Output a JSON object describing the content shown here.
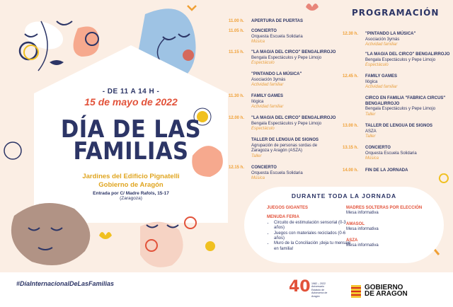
{
  "event": {
    "time_range": "- DE 11 A 14 H -",
    "date": "15 de mayo de 2022",
    "title_line1": "DÍA DE LAS",
    "title_line2": "FAMILIAS",
    "venue_line1": "Jardines del Edificio Pignatelli",
    "venue_line2": "Gobierno de Aragón",
    "entrance": "Entrada por C/ Madre Rafols, 15-17",
    "city": "(Zaragoza)"
  },
  "program": {
    "title": "PROGRAMACIÓN",
    "left": [
      {
        "time": "11.00 h.",
        "name": "APERTURA DE PUERTAS",
        "org": "",
        "cat": ""
      },
      {
        "time": "11.05 h.",
        "name": "CONCIERTO",
        "org": "Orquesta Escuela Solidaria",
        "cat": "Música"
      },
      {
        "time": "11.15 h.",
        "name": "\"LA MAGIA DEL CIRCO\" BENGALIRROJO",
        "org": "Bengala Espectáculos y Pepe Limojo",
        "cat": "Espectáculo"
      },
      {
        "time": "",
        "name": "\"PINTANDO LA MÚSICA\"",
        "org": "Asociación 3ymás",
        "cat": "Actividad familiar"
      },
      {
        "time": "11.30 h.",
        "name": "FAMILY GAMES",
        "org": "Ilógica",
        "cat": "Actividad familiar"
      },
      {
        "time": "12.00 h.",
        "name": "\"LA MAGIA DEL CIRCO\" BENGALIRROJO",
        "org": "Bengala Espectáculos y Pepe Limojo",
        "cat": "Espectáculo"
      },
      {
        "time": "",
        "name": "TALLER DE LENGUA DE SIGNOS",
        "org": "Agrupación de personas sordas de Zaragoza y Aragón (ASZA)",
        "cat": "Taller"
      },
      {
        "time": "12.15 h.",
        "name": "CONCIERTO",
        "org": "Orquesta Escuela Solidaria",
        "cat": "Música"
      }
    ],
    "right": [
      {
        "time": "12.30 h.",
        "name": "\"PINTANDO LA MÚSICA\"",
        "org": "Asociación 3ymás",
        "cat": "Actividad familiar"
      },
      {
        "time": "",
        "name": "\"LA MAGIA DEL CIRCO\" BENGALIRROJO",
        "org": "Bengala Espectáculos y Pepe Limojo",
        "cat": "Espectáculo"
      },
      {
        "time": "12.45 h.",
        "name": "FAMILY GAMES",
        "org": "Ilógica",
        "cat": "Actividad familiar"
      },
      {
        "time": "",
        "name": "CIRCO EN FAMILIA \"FABRICA CIRCUS\" BENGALIRROJO",
        "org": "Bengala Espectáculos y Pepe Limojo",
        "cat": "Taller"
      },
      {
        "time": "13.00 h.",
        "name": "TALLER DE LENGUA DE SIGNOS",
        "org": "ASZA",
        "cat": "Taller"
      },
      {
        "time": "13.15 h.",
        "name": "CONCIERTO",
        "org": "Orquesta Escuela Solidaria",
        "cat": "Música"
      },
      {
        "time": "14.00 h.",
        "name": "FIN DE LA JORNADA",
        "org": "",
        "cat": ""
      }
    ]
  },
  "all_day": {
    "title": "DURANTE TODA LA JORNADA",
    "left": {
      "h1": "JUEGOS GIGANTES",
      "h2": "MENUDA FERIA",
      "items": [
        "Circuito de estimulación sensorial (0-3 años)",
        "Juegos con materiales reciclados (0-6 años)",
        "Muro de la Conciliación ¡deja tu mensaje en familia!"
      ]
    },
    "right": [
      {
        "h": "MADRES SOLTERAS POR ELECCIÓN",
        "t": "Mesa informativa"
      },
      {
        "h": "AMASOL",
        "t": "Mesa informativa"
      },
      {
        "h": "ASZA",
        "t": "Mesa informativa"
      }
    ]
  },
  "footer": {
    "hashtag": "#DíaInternacionalDeLasFamilias",
    "logo40_number": "40",
    "logo40_text": "1982 – 2022 Aniversario Estatuto de Autonomía de Aragón",
    "gov_line1": "GOBIERNO",
    "gov_line2": "DE ARAGON"
  },
  "colors": {
    "navy": "#2c3566",
    "red": "#e2523a",
    "yellow": "#f0a035",
    "peach": "#fbeee4"
  }
}
